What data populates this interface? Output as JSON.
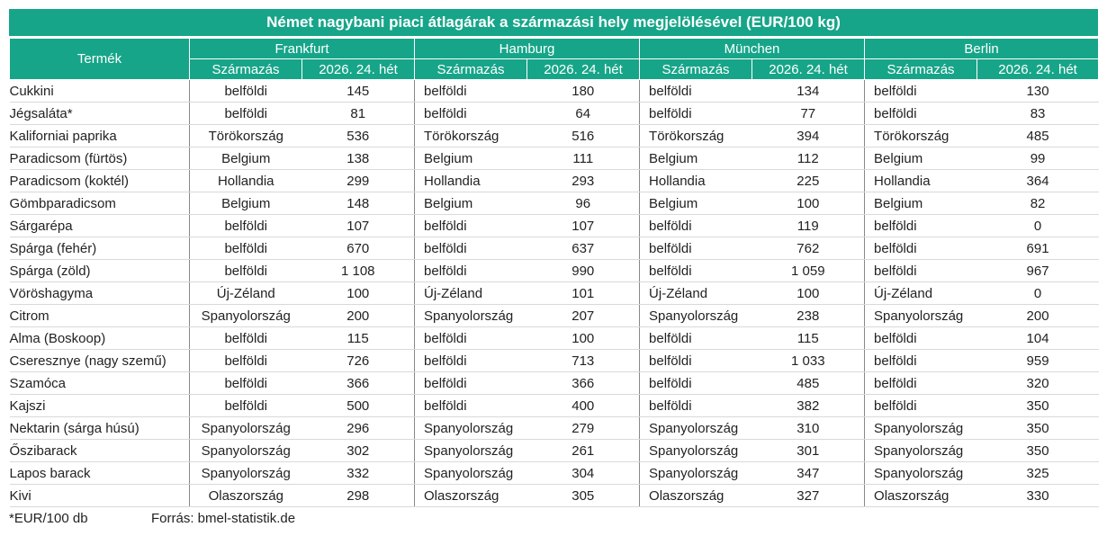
{
  "title": "Német nagybani piaci átlagárak a származási hely megjelölésével (EUR/100 kg)",
  "header": {
    "product": "Termék",
    "cities": [
      "Frankfurt",
      "Hamburg",
      "München",
      "Berlin"
    ],
    "origin": "Származás",
    "week": "2026. 24. hét"
  },
  "rows": [
    [
      "Cukkini",
      "belföldi",
      "145",
      "belföldi",
      "180",
      "belföldi",
      "134",
      "belföldi",
      "130"
    ],
    [
      "Jégsaláta*",
      "belföldi",
      "81",
      "belföldi",
      "64",
      "belföldi",
      "77",
      "belföldi",
      "83"
    ],
    [
      "Kaliforniai paprika",
      "Törökország",
      "536",
      "Törökország",
      "516",
      "Törökország",
      "394",
      "Törökország",
      "485"
    ],
    [
      "Paradicsom (fürtös)",
      "Belgium",
      "138",
      "Belgium",
      "111",
      "Belgium",
      "112",
      "Belgium",
      "99"
    ],
    [
      "Paradicsom (koktél)",
      "Hollandia",
      "299",
      "Hollandia",
      "293",
      "Hollandia",
      "225",
      "Hollandia",
      "364"
    ],
    [
      "Gömbparadicsom",
      "Belgium",
      "148",
      "Belgium",
      "96",
      "Belgium",
      "100",
      "Belgium",
      "82"
    ],
    [
      "Sárgarépa",
      "belföldi",
      "107",
      "belföldi",
      "107",
      "belföldi",
      "119",
      "belföldi",
      "0"
    ],
    [
      "Spárga (fehér)",
      "belföldi",
      "670",
      "belföldi",
      "637",
      "belföldi",
      "762",
      "belföldi",
      "691"
    ],
    [
      "Spárga (zöld)",
      "belföldi",
      "1 108",
      "belföldi",
      "990",
      "belföldi",
      "1 059",
      "belföldi",
      "967"
    ],
    [
      "Vöröshagyma",
      "Új-Zéland",
      "100",
      "Új-Zéland",
      "101",
      "Új-Zéland",
      "100",
      "Új-Zéland",
      "0"
    ],
    [
      "Citrom",
      "Spanyolország",
      "200",
      "Spanyolország",
      "207",
      "Spanyolország",
      "238",
      "Spanyolország",
      "200"
    ],
    [
      "Alma (Boskoop)",
      "belföldi",
      "115",
      "belföldi",
      "100",
      "belföldi",
      "115",
      "belföldi",
      "104"
    ],
    [
      "Cseresznye (nagy szemű)",
      "belföldi",
      "726",
      "belföldi",
      "713",
      "belföldi",
      "1 033",
      "belföldi",
      "959"
    ],
    [
      "Szamóca",
      "belföldi",
      "366",
      "belföldi",
      "366",
      "belföldi",
      "485",
      "belföldi",
      "320"
    ],
    [
      "Kajszi",
      "belföldi",
      "500",
      "belföldi",
      "400",
      "belföldi",
      "382",
      "belföldi",
      "350"
    ],
    [
      "Nektarin (sárga húsú)",
      "Spanyolország",
      "296",
      "Spanyolország",
      "279",
      "Spanyolország",
      "310",
      "Spanyolország",
      "350"
    ],
    [
      "Őszibarack",
      "Spanyolország",
      "302",
      "Spanyolország",
      "261",
      "Spanyolország",
      "301",
      "Spanyolország",
      "350"
    ],
    [
      "Lapos barack",
      "Spanyolország",
      "332",
      "Spanyolország",
      "304",
      "Spanyolország",
      "347",
      "Spanyolország",
      "325"
    ],
    [
      "Kivi",
      "Olaszország",
      "298",
      "Olaszország",
      "305",
      "Olaszország",
      "327",
      "Olaszország",
      "330"
    ]
  ],
  "footnote": "*EUR/100 db",
  "source": "Forrás: bmel-statistik.de"
}
